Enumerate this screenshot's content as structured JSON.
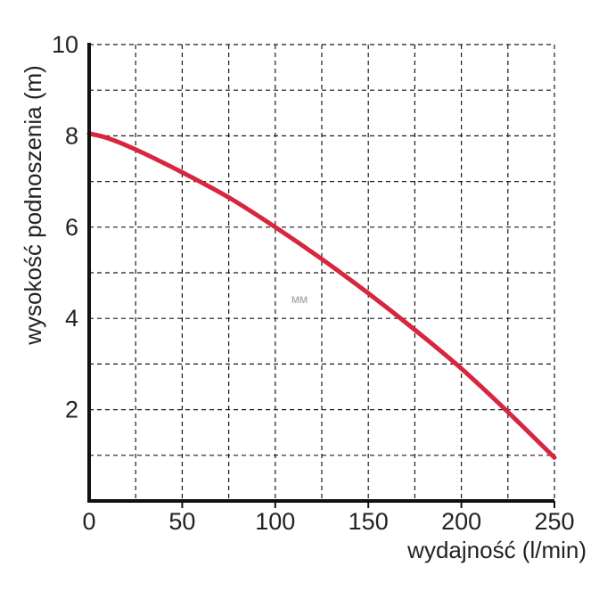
{
  "chart_data": {
    "type": "line",
    "title": "",
    "xlabel": "wydajność (l/min)",
    "ylabel": "wysokość podnoszenia (m)",
    "xlim": [
      0,
      250
    ],
    "ylim": [
      0,
      10
    ],
    "x_ticks": [
      0,
      50,
      100,
      150,
      200,
      250
    ],
    "x_tick_labels": [
      "0",
      "50",
      "100",
      "150",
      "200",
      "250"
    ],
    "y_ticks": [
      2,
      4,
      6,
      8,
      10
    ],
    "y_tick_labels": [
      "2",
      "4",
      "6",
      "8",
      "10"
    ],
    "grid": true,
    "grid_step_x": 25,
    "grid_step_y": 1,
    "grid_style": "dashed",
    "watermark": "MM",
    "series": [
      {
        "color": "#d7263d",
        "x": [
          0,
          10,
          25,
          50,
          75,
          100,
          125,
          150,
          175,
          200,
          225,
          250
        ],
        "y": [
          8.05,
          7.95,
          7.7,
          7.2,
          6.65,
          6.0,
          5.3,
          4.55,
          3.75,
          2.9,
          1.95,
          0.95
        ]
      }
    ]
  }
}
